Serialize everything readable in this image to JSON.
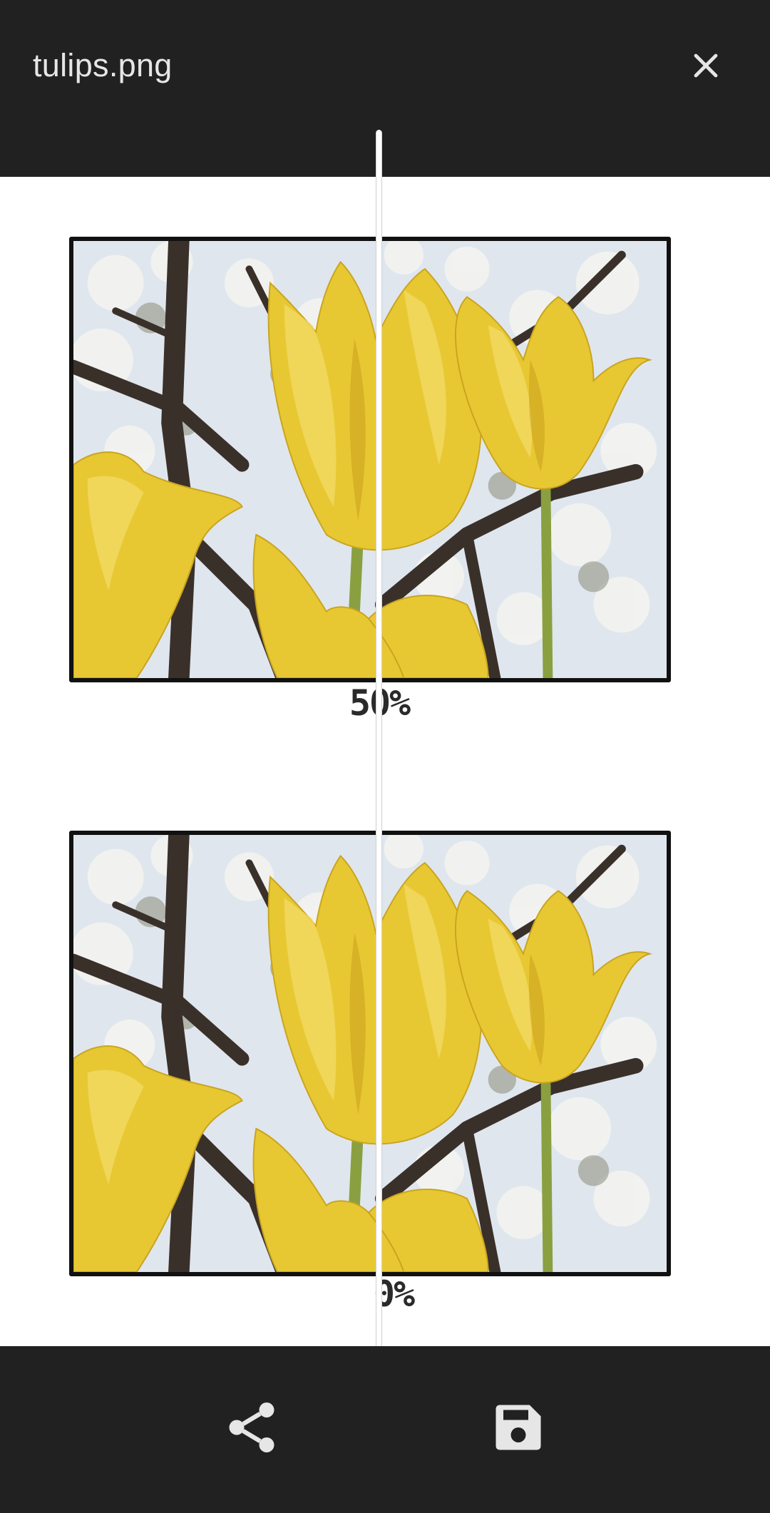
{
  "header": {
    "title": "tulips.png",
    "close_icon": "close-icon"
  },
  "comparison": {
    "top_image": {
      "caption": "50%"
    },
    "bottom_image": {
      "caption": "0%"
    },
    "divider_position": 0.5
  },
  "footer": {
    "share_icon": "share-icon",
    "save_icon": "save-icon"
  },
  "colors": {
    "bar_background": "#212121",
    "icon_color": "#e6e6e6",
    "tulip_yellow": "#e8c832"
  }
}
